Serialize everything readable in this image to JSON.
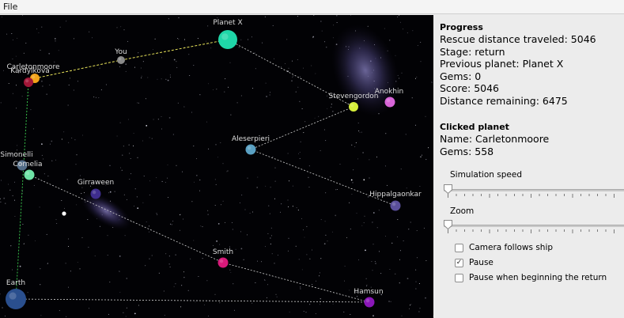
{
  "menu": {
    "file_label": "File"
  },
  "progress": {
    "heading": "Progress",
    "rescue_distance": "Rescue distance traveled: 5046",
    "stage": "Stage: return",
    "previous_planet": "Previous planet: Planet X",
    "gems": "Gems: 0",
    "score": "Score: 5046",
    "distance_remaining": "Distance remaining: 6475"
  },
  "clicked_planet": {
    "heading": "Clicked planet",
    "name": "Name: Carletonmoore",
    "gems": "Gems: 558"
  },
  "controls": {
    "simulation_speed_label": "Simulation speed",
    "simulation_speed_value": 0,
    "zoom_label": "Zoom",
    "zoom_value": 0,
    "camera_follows_label": "Camera follows ship",
    "camera_follows_checked": false,
    "pause_label": "Pause",
    "pause_checked": true,
    "pause_return_label": "Pause when beginning the return",
    "pause_return_checked": false
  },
  "planets": [
    {
      "label": "Planet X",
      "color": "#1fd6a8"
    },
    {
      "label": "You",
      "color": "#8a8a8a"
    },
    {
      "label": "Carletonmoore",
      "color": "#f2a31a"
    },
    {
      "label": "Kardylkova",
      "color": "#a01737"
    },
    {
      "label": "Stevengordon",
      "color": "#d6ef3a"
    },
    {
      "label": "Anokhin",
      "color": "#d865d8"
    },
    {
      "label": "Aleserpieri",
      "color": "#5aa0c2"
    },
    {
      "label": "Simonelli",
      "color": "#536d88"
    },
    {
      "label": "Cornelia",
      "color": "#6fe3a6"
    },
    {
      "label": "Girraween",
      "color": "#3e2d8e"
    },
    {
      "label": "Hippalgaonkar",
      "color": "#5a4f9b"
    },
    {
      "label": "Smith",
      "color": "#d8197a"
    },
    {
      "label": "Earth",
      "color": "#2a4f8e"
    },
    {
      "label": "Hamsun",
      "color": "#8a17b8"
    }
  ]
}
